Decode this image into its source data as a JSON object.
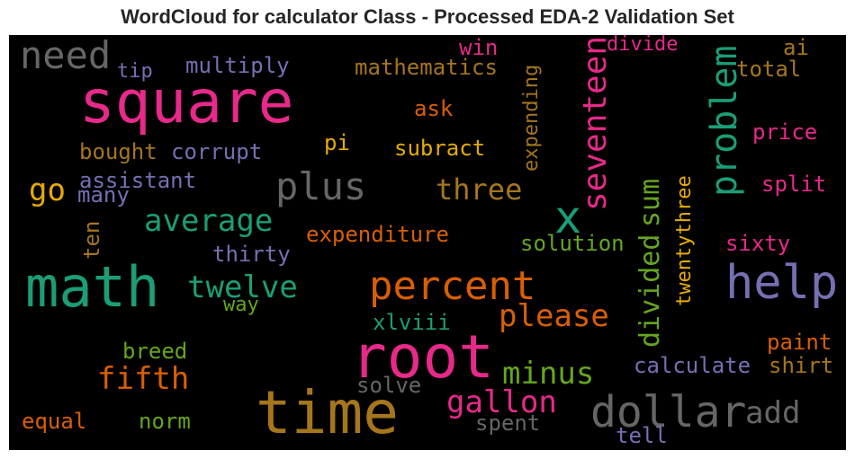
{
  "title": "WordCloud for calculator Class - Processed EDA-2 Validation Set",
  "colors": {
    "pink": "#e7298a",
    "teal": "#1b9e77",
    "orange": "#d95f02",
    "purple": "#7570b3",
    "gray": "#666666",
    "brown": "#a6761d",
    "yellow": "#e6ab02",
    "green": "#66a61e"
  },
  "chart_data": {
    "type": "wordcloud",
    "title": "WordCloud for calculator Class - Processed EDA-2 Validation Set",
    "words": [
      {
        "text": "square",
        "color": "pink"
      },
      {
        "text": "need",
        "color": "gray"
      },
      {
        "text": "tip",
        "color": "purple"
      },
      {
        "text": "multiply",
        "color": "purple"
      },
      {
        "text": "mathematics",
        "color": "brown"
      },
      {
        "text": "win",
        "color": "pink"
      },
      {
        "text": "divide",
        "color": "pink"
      },
      {
        "text": "ai",
        "color": "brown"
      },
      {
        "text": "total",
        "color": "brown"
      },
      {
        "text": "expending",
        "color": "brown"
      },
      {
        "text": "problem",
        "color": "teal"
      },
      {
        "text": "ask",
        "color": "orange"
      },
      {
        "text": "price",
        "color": "pink"
      },
      {
        "text": "bought",
        "color": "brown"
      },
      {
        "text": "corrupt",
        "color": "purple"
      },
      {
        "text": "pi",
        "color": "yellow"
      },
      {
        "text": "subract",
        "color": "yellow"
      },
      {
        "text": "seventeen",
        "color": "pink"
      },
      {
        "text": "assistant",
        "color": "purple"
      },
      {
        "text": "go",
        "color": "yellow"
      },
      {
        "text": "many",
        "color": "purple"
      },
      {
        "text": "plus",
        "color": "gray"
      },
      {
        "text": "three",
        "color": "brown"
      },
      {
        "text": "split",
        "color": "pink"
      },
      {
        "text": "sum",
        "color": "green"
      },
      {
        "text": "x",
        "color": "teal"
      },
      {
        "text": "average",
        "color": "teal"
      },
      {
        "text": "ten",
        "color": "brown"
      },
      {
        "text": "twentythree",
        "color": "yellow"
      },
      {
        "text": "expenditure",
        "color": "orange"
      },
      {
        "text": "solution",
        "color": "green"
      },
      {
        "text": "sixty",
        "color": "pink"
      },
      {
        "text": "thirty",
        "color": "purple"
      },
      {
        "text": "math",
        "color": "teal"
      },
      {
        "text": "twelve",
        "color": "teal"
      },
      {
        "text": "percent",
        "color": "orange"
      },
      {
        "text": "help",
        "color": "purple"
      },
      {
        "text": "way",
        "color": "green"
      },
      {
        "text": "divided",
        "color": "green"
      },
      {
        "text": "please",
        "color": "orange"
      },
      {
        "text": "xlviii",
        "color": "teal"
      },
      {
        "text": "root",
        "color": "pink"
      },
      {
        "text": "breed",
        "color": "green"
      },
      {
        "text": "paint",
        "color": "orange"
      },
      {
        "text": "minus",
        "color": "green"
      },
      {
        "text": "fifth",
        "color": "orange"
      },
      {
        "text": "calculate",
        "color": "purple"
      },
      {
        "text": "shirt",
        "color": "brown"
      },
      {
        "text": "solve",
        "color": "gray"
      },
      {
        "text": "gallon",
        "color": "pink"
      },
      {
        "text": "time",
        "color": "brown"
      },
      {
        "text": "dollar",
        "color": "gray"
      },
      {
        "text": "add",
        "color": "gray"
      },
      {
        "text": "equal",
        "color": "orange"
      },
      {
        "text": "norm",
        "color": "green"
      },
      {
        "text": "spent",
        "color": "gray"
      },
      {
        "text": "tell",
        "color": "purple"
      }
    ]
  }
}
